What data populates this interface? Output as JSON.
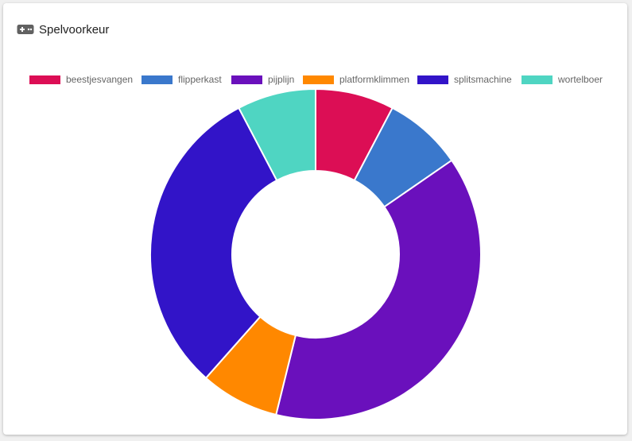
{
  "card": {
    "title": "Spelvoorkeur",
    "icon": "gamepad-icon"
  },
  "chart_data": {
    "type": "pie",
    "variant": "doughnut",
    "title": "Spelvoorkeur",
    "legend_position": "top",
    "categories": [
      "beestjesvangen",
      "flipperkast",
      "pijplijn",
      "platformklimmen",
      "splitsmachine",
      "wortelboer"
    ],
    "values": [
      1,
      1,
      5,
      1,
      4,
      1
    ],
    "colors": [
      "#dc0e55",
      "#3a78cc",
      "#6a10bc",
      "#ff8800",
      "#3214c8",
      "#4fd5c2"
    ]
  }
}
